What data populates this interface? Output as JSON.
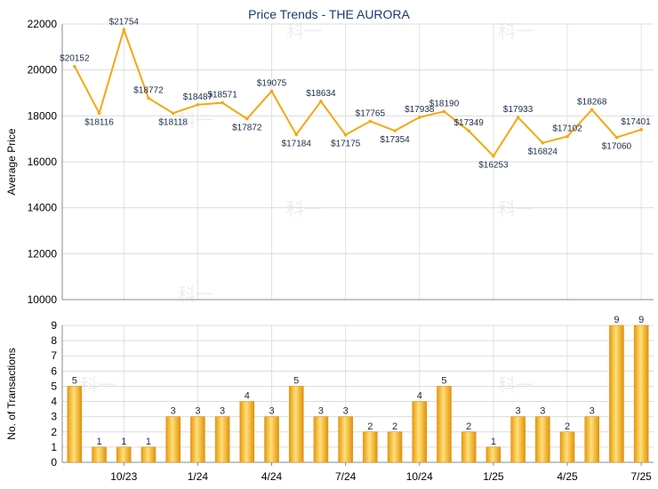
{
  "chart_data": [
    {
      "type": "line",
      "title": "Price Trends - THE AURORA",
      "ylabel": "Average Price",
      "ylim": [
        10000,
        22000
      ],
      "yticks": [
        10000,
        12000,
        14000,
        16000,
        18000,
        20000,
        22000
      ],
      "ytick_labels": [
        "10000",
        "12000",
        "14000",
        "16000",
        "18000",
        "20000",
        "22000"
      ],
      "grid": true,
      "series": [
        {
          "color": "#f5a80e",
          "values": [
            20152,
            18116,
            21754,
            18772,
            18118,
            18487,
            18571,
            17872,
            19075,
            17184,
            18634,
            17175,
            17765,
            17354,
            17938,
            18190,
            17349,
            16253,
            17933,
            16824,
            17102,
            18268,
            17060,
            17401
          ],
          "labels": [
            "$20152",
            "$18116",
            "$21754",
            "$18772",
            "$18118",
            "$18487",
            "$18571",
            "$17872",
            "$19075",
            "$17184",
            "$18634",
            "$17175",
            "$17765",
            "$17354",
            "$17938",
            "$18190",
            "$17349",
            "$16253",
            "$17933",
            "$16824",
            "$17102",
            "$18268",
            "$17060",
            "$17401"
          ]
        }
      ]
    },
    {
      "type": "bar",
      "ylabel": "No. of Transactions",
      "ylim": [
        0,
        9
      ],
      "yticks": [
        0,
        1,
        2,
        3,
        4,
        5,
        6,
        7,
        8,
        9
      ],
      "ytick_labels": [
        "0",
        "1",
        "2",
        "3",
        "4",
        "5",
        "6",
        "7",
        "8",
        "9"
      ],
      "grid": true,
      "values": [
        5,
        1,
        1,
        1,
        3,
        3,
        3,
        4,
        3,
        5,
        3,
        3,
        2,
        2,
        4,
        5,
        2,
        1,
        3,
        3,
        2,
        3,
        9,
        9
      ],
      "xtick_labels": [
        {
          "index": 2,
          "label": "10/23"
        },
        {
          "index": 5,
          "label": "1/24"
        },
        {
          "index": 8,
          "label": "4/24"
        },
        {
          "index": 11,
          "label": "7/24"
        },
        {
          "index": 14,
          "label": "10/24"
        },
        {
          "index": 17,
          "label": "1/25"
        },
        {
          "index": 20,
          "label": "4/25"
        },
        {
          "index": 23,
          "label": "7/25"
        }
      ],
      "bar_color": "#f2b52a"
    }
  ],
  "watermark": "科一"
}
